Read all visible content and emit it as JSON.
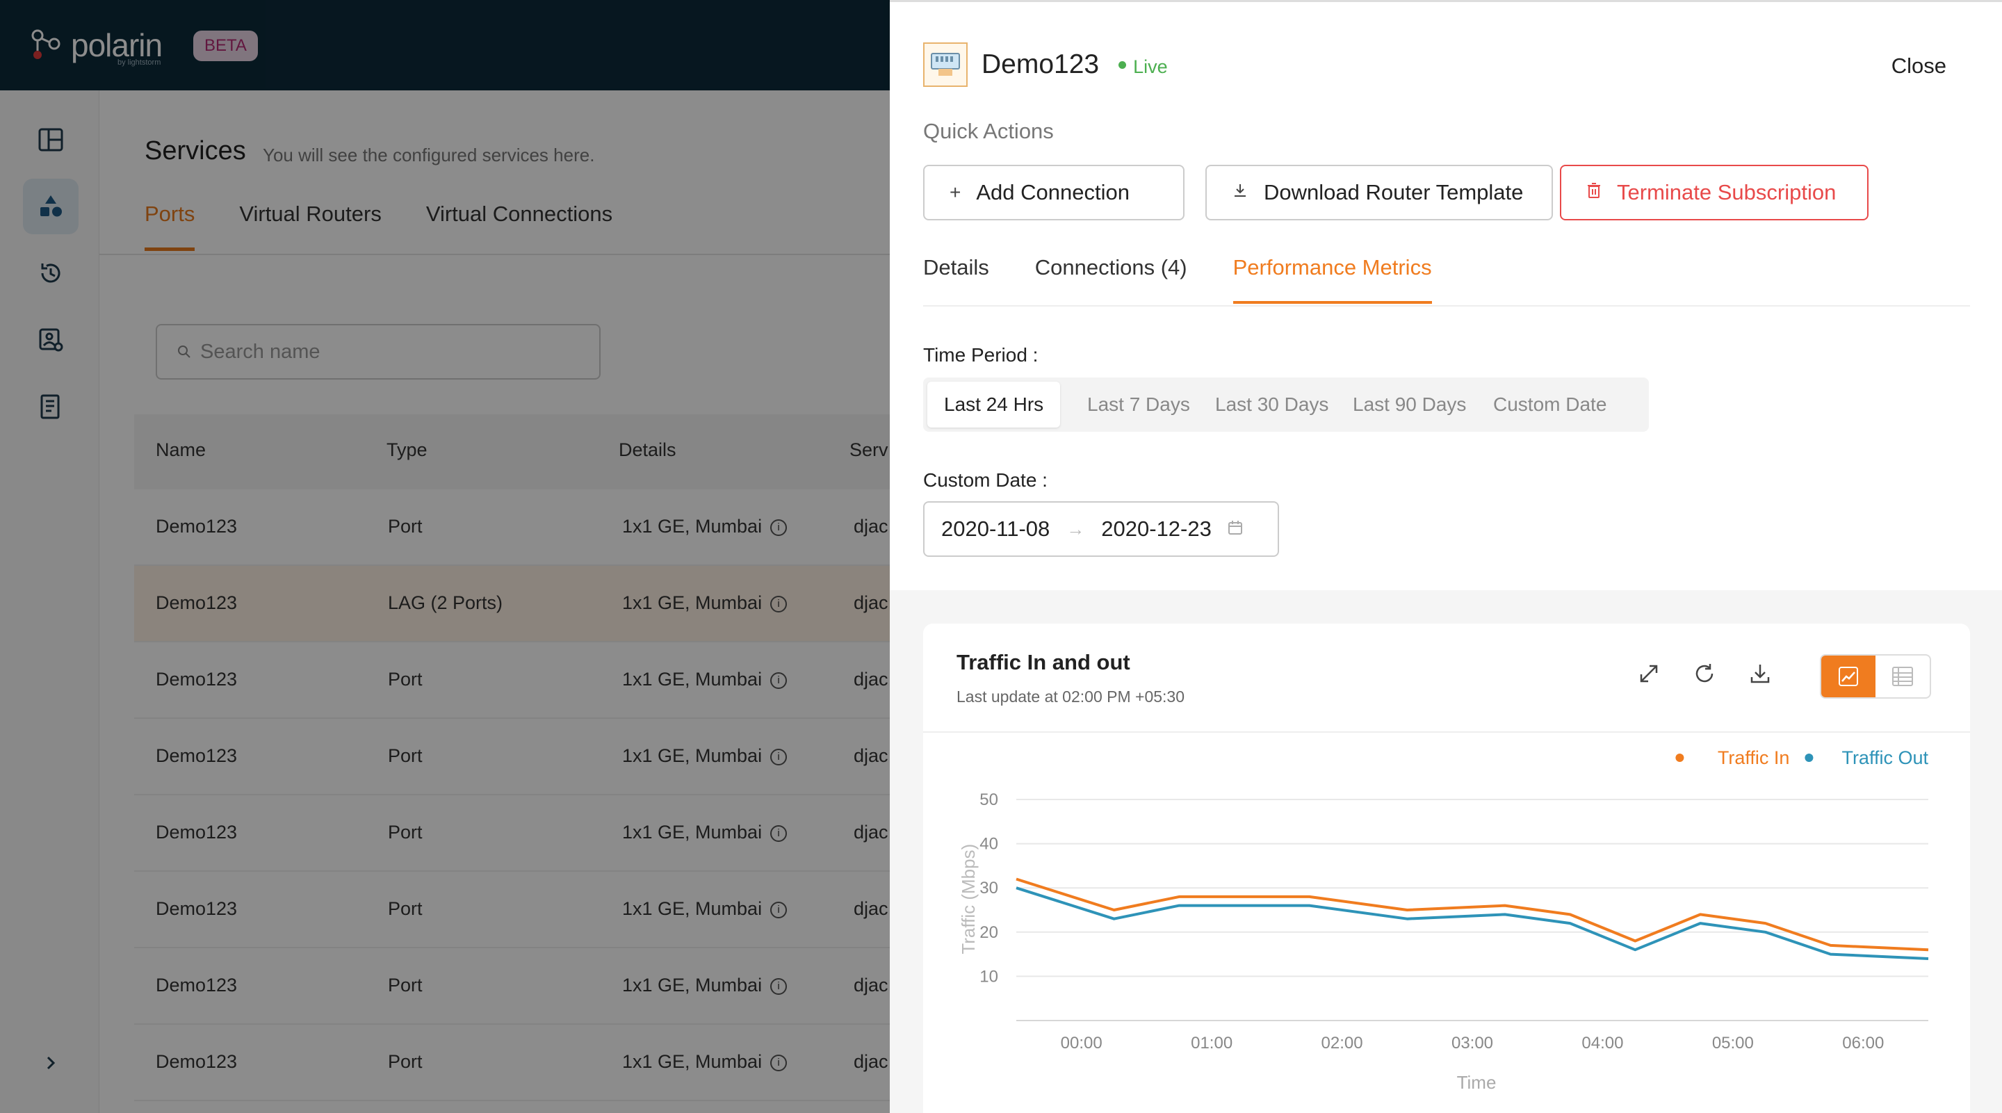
{
  "brand": {
    "name": "polarin",
    "sub": "by lightstorm",
    "badge": "BETA"
  },
  "page": {
    "title": "Services",
    "subtitle": "You will see the configured services here."
  },
  "service_tabs": [
    "Ports",
    "Virtual Routers",
    "Virtual Connections"
  ],
  "search": {
    "placeholder": "Search name"
  },
  "table": {
    "columns": [
      "Name",
      "Type",
      "Details",
      "Serv"
    ],
    "rows": [
      {
        "name": "Demo123",
        "type": "Port",
        "details": "1x1 GE, Mumbai",
        "serv": "djac"
      },
      {
        "name": "Demo123",
        "type": "LAG (2 Ports)",
        "details": "1x1 GE, Mumbai",
        "serv": "djac"
      },
      {
        "name": "Demo123",
        "type": "Port",
        "details": "1x1 GE, Mumbai",
        "serv": "djac"
      },
      {
        "name": "Demo123",
        "type": "Port",
        "details": "1x1 GE, Mumbai",
        "serv": "djac"
      },
      {
        "name": "Demo123",
        "type": "Port",
        "details": "1x1 GE, Mumbai",
        "serv": "djac"
      },
      {
        "name": "Demo123",
        "type": "Port",
        "details": "1x1 GE, Mumbai",
        "serv": "djac"
      },
      {
        "name": "Demo123",
        "type": "Port",
        "details": "1x1 GE, Mumbai",
        "serv": "djac"
      },
      {
        "name": "Demo123",
        "type": "Port",
        "details": "1x1 GE, Mumbai",
        "serv": "djac"
      }
    ]
  },
  "drawer": {
    "title": "Demo123",
    "status": "Live",
    "close_label": "Close",
    "quick_actions_label": "Quick Actions",
    "actions": {
      "add": "Add Connection",
      "download": "Download Router Template",
      "terminate": "Terminate Subscription"
    },
    "tabs": [
      "Details",
      "Connections (4)",
      "Performance Metrics"
    ],
    "time_period_label": "Time Period :",
    "periods": [
      "Last 24 Hrs",
      "Last 7 Days",
      "Last 30 Days",
      "Last 90 Days",
      "Custom Date"
    ],
    "custom_date_label": "Custom Date :",
    "date_from": "2020-11-08",
    "date_to": "2020-12-23"
  },
  "colors": {
    "accent": "#f07c1f",
    "traffic_in": "#f07c1f",
    "traffic_out": "#2e93b8",
    "danger": "#e84a4a",
    "live": "#4caf50"
  },
  "chart_data": {
    "type": "line",
    "title": "Traffic In and out",
    "subtitle": "Last update at 02:00 PM +05:30",
    "xlabel": "Time",
    "ylabel": "Traffic (Mbps)",
    "ylim": [
      0,
      50
    ],
    "yticks": [
      10,
      20,
      30,
      40,
      50
    ],
    "xticks": [
      "00:00",
      "01:00",
      "02:00",
      "03:00",
      "04:00",
      "05:00",
      "06:00"
    ],
    "legend_position": "top-right",
    "x": [
      "23:30",
      "00:15",
      "00:45",
      "01:45",
      "02:30",
      "03:15",
      "03:45",
      "04:15",
      "04:45",
      "05:15",
      "05:45",
      "06:30"
    ],
    "series": [
      {
        "name": "Traffic In",
        "color": "#f07c1f",
        "values": [
          32,
          25,
          28,
          28,
          25,
          26,
          24,
          18,
          24,
          22,
          17,
          16
        ]
      },
      {
        "name": "Traffic Out",
        "color": "#2e93b8",
        "values": [
          30,
          23,
          26,
          26,
          23,
          24,
          22,
          16,
          22,
          20,
          15,
          14
        ]
      }
    ]
  }
}
